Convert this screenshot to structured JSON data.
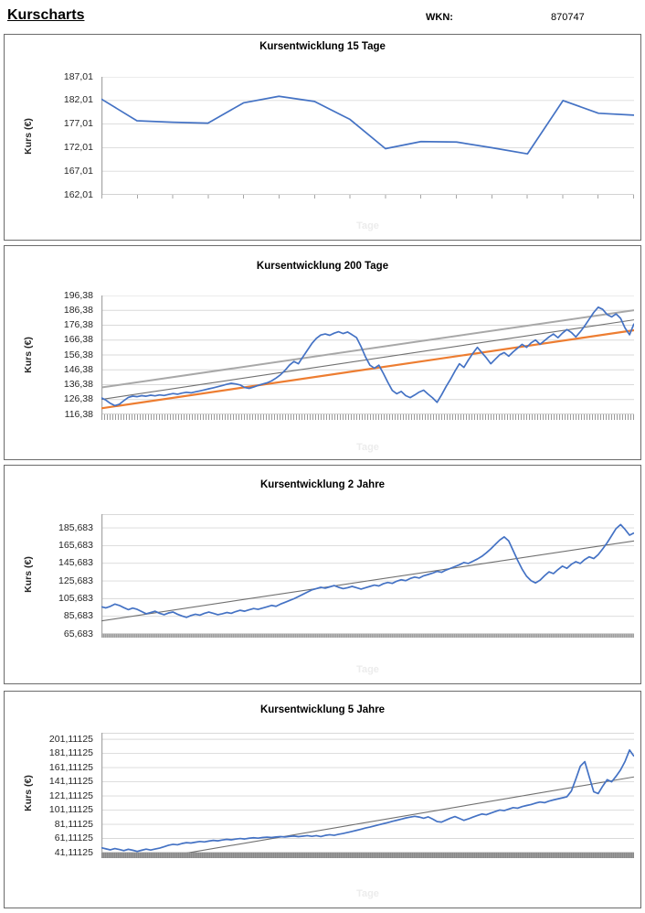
{
  "header": {
    "title": "Kurscharts",
    "wkn_label": "WKN:",
    "wkn_value": "870747"
  },
  "palette": {
    "series_blue": "#4472C4",
    "trend_orange": "#ED7D31",
    "trend_gray_light": "#A8A8A8",
    "trend_gray_dark": "#707070",
    "gridline": "#D9D9D9",
    "axis_line": "#A6A6A6",
    "x_title_watermark": "#ECECEC"
  },
  "chart_data": [
    {
      "type": "line",
      "title": "Kursentwicklung 15 Tage",
      "ylabel": "Kurs (€)",
      "xlabel": "Tage",
      "ylim": [
        162.01,
        187.01
      ],
      "grid": true,
      "legend": "none",
      "top_edge": false,
      "y_ticks": [
        {
          "v": 187.01,
          "label": "187,01"
        },
        {
          "v": 182.01,
          "label": "182,01"
        },
        {
          "v": 177.01,
          "label": "177,01"
        },
        {
          "v": 172.01,
          "label": "172,01"
        },
        {
          "v": 167.01,
          "label": "167,01"
        },
        {
          "v": 162.01,
          "label": "162,01"
        }
      ],
      "series": [
        {
          "name": "Kurs",
          "values": [
            182.3,
            177.7,
            177.4,
            177.2,
            181.5,
            182.9,
            181.8,
            178.0,
            171.8,
            173.3,
            173.2,
            172.0,
            170.7,
            182.0,
            179.3,
            178.9
          ]
        }
      ],
      "trendlines": []
    },
    {
      "type": "line",
      "title": "Kursentwicklung 200 Tage",
      "ylabel": "Kurs (€)",
      "xlabel": "Tage",
      "ylim": [
        116.38,
        196.38
      ],
      "grid": true,
      "legend": "none",
      "top_edge": false,
      "y_ticks": [
        {
          "v": 196.38,
          "label": "196,38"
        },
        {
          "v": 186.38,
          "label": "186,38"
        },
        {
          "v": 176.38,
          "label": "176,38"
        },
        {
          "v": 166.38,
          "label": "166,38"
        },
        {
          "v": 156.38,
          "label": "156,38"
        },
        {
          "v": 146.38,
          "label": "146,38"
        },
        {
          "v": 136.38,
          "label": "136,38"
        },
        {
          "v": 126.38,
          "label": "126,38"
        },
        {
          "v": 116.38,
          "label": "116,38"
        }
      ],
      "series": [
        {
          "name": "Kurs",
          "values": [
            127.5,
            126.0,
            123.8,
            122.3,
            123.2,
            125.6,
            127.8,
            128.7,
            128.3,
            129.0,
            128.6,
            129.3,
            128.9,
            129.5,
            129.1,
            129.8,
            130.4,
            130.0,
            130.7,
            131.3,
            130.9,
            131.6,
            132.2,
            132.9,
            133.6,
            134.3,
            135.0,
            135.8,
            136.6,
            137.3,
            136.9,
            136.2,
            134.5,
            133.9,
            134.8,
            135.9,
            136.8,
            137.6,
            138.9,
            140.8,
            143.0,
            146.0,
            149.5,
            152.0,
            150.5,
            155.0,
            159.5,
            164.0,
            167.5,
            169.8,
            170.5,
            169.6,
            171.0,
            172.0,
            170.8,
            171.8,
            170.0,
            168.0,
            162.0,
            155.0,
            149.5,
            147.5,
            149.5,
            144.0,
            138.0,
            132.5,
            130.3,
            131.8,
            129.0,
            127.7,
            129.4,
            131.4,
            132.7,
            130.0,
            127.5,
            124.5,
            129.5,
            135.0,
            140.0,
            145.5,
            150.5,
            148.0,
            153.0,
            157.5,
            161.5,
            158.0,
            154.5,
            150.5,
            153.5,
            156.5,
            158.0,
            155.5,
            158.5,
            161.0,
            163.5,
            161.5,
            164.5,
            166.5,
            163.5,
            166.0,
            168.5,
            170.5,
            168.0,
            171.0,
            173.5,
            171.5,
            168.5,
            172.0,
            176.0,
            180.5,
            185.0,
            188.5,
            187.0,
            183.5,
            182.0,
            184.0,
            181.0,
            174.5,
            170.0,
            177.5
          ]
        }
      ],
      "trendlines": [
        {
          "name": "upper-channel",
          "color": "trend_gray_light",
          "from": 134.5,
          "to": 186.5,
          "width": 2.0
        },
        {
          "name": "mid-trend",
          "color": "trend_gray_dark",
          "from": 126.5,
          "to": 180.0,
          "width": 1.1
        },
        {
          "name": "lower-channel",
          "color": "trend_orange",
          "from": 120.5,
          "to": 173.0,
          "width": 2.2
        }
      ]
    },
    {
      "type": "line",
      "title": "Kursentwicklung 2 Jahre",
      "ylabel": "Kurs (€)",
      "xlabel": "Tage",
      "ylim": [
        65.683,
        201.3
      ],
      "grid": true,
      "legend": "none",
      "top_edge": true,
      "y_ticks": [
        {
          "v": 185.683,
          "label": "185,683"
        },
        {
          "v": 165.683,
          "label": "165,683"
        },
        {
          "v": 145.683,
          "label": "145,683"
        },
        {
          "v": 125.683,
          "label": "125,683"
        },
        {
          "v": 105.683,
          "label": "105,683"
        },
        {
          "v": 85.683,
          "label": "85,683"
        },
        {
          "v": 65.683,
          "label": "65,683"
        }
      ],
      "series": [
        {
          "name": "Kurs",
          "values": [
            96.5,
            95.2,
            97.0,
            99.5,
            98.0,
            95.5,
            93.2,
            95.0,
            93.5,
            91.0,
            88.5,
            90.0,
            91.5,
            89.0,
            87.5,
            89.5,
            90.5,
            88.0,
            86.0,
            84.5,
            86.5,
            88.0,
            87.0,
            89.0,
            90.5,
            89.0,
            87.5,
            88.5,
            90.0,
            89.0,
            91.0,
            92.5,
            91.5,
            93.0,
            94.5,
            93.5,
            95.0,
            96.5,
            98.0,
            97.0,
            99.5,
            101.5,
            103.5,
            105.5,
            108.0,
            110.5,
            113.0,
            115.5,
            117.0,
            118.5,
            117.5,
            119.0,
            120.5,
            118.5,
            117.0,
            118.0,
            119.5,
            118.0,
            116.5,
            118.0,
            119.5,
            121.0,
            120.0,
            122.5,
            124.0,
            123.0,
            125.5,
            127.0,
            126.0,
            128.5,
            130.0,
            129.0,
            131.5,
            133.0,
            134.5,
            136.5,
            135.5,
            138.0,
            140.0,
            142.0,
            144.0,
            146.5,
            145.5,
            148.0,
            150.5,
            153.5,
            157.5,
            162.0,
            167.0,
            172.0,
            175.5,
            171.0,
            160.0,
            149.0,
            139.0,
            131.0,
            126.0,
            123.5,
            126.5,
            131.5,
            136.0,
            134.0,
            138.5,
            142.5,
            140.0,
            144.5,
            147.5,
            145.5,
            150.0,
            153.0,
            151.0,
            155.5,
            162.0,
            169.0,
            177.0,
            185.0,
            189.5,
            184.0,
            177.5,
            180.0
          ]
        }
      ],
      "trendlines": [
        {
          "name": "mid-trend",
          "color": "trend_gray_dark",
          "from": 80.5,
          "to": 171.0,
          "width": 1.1
        }
      ]
    },
    {
      "type": "line",
      "title": "Kursentwicklung 5 Jahre",
      "ylabel": "Kurs (€)",
      "xlabel": "Tage",
      "ylim": [
        41.11125,
        210.3
      ],
      "grid": true,
      "legend": "none",
      "top_edge": true,
      "y_ticks": [
        {
          "v": 201.11125,
          "label": "201,11125"
        },
        {
          "v": 181.11125,
          "label": "181,11125"
        },
        {
          "v": 161.11125,
          "label": "161,11125"
        },
        {
          "v": 141.11125,
          "label": "141,11125"
        },
        {
          "v": 121.11125,
          "label": "121,11125"
        },
        {
          "v": 101.11125,
          "label": "101,11125"
        },
        {
          "v": 81.11125,
          "label": "81,11125"
        },
        {
          "v": 61.11125,
          "label": "61,11125"
        },
        {
          "v": 41.11125,
          "label": "41,11125"
        }
      ],
      "series": [
        {
          "name": "Kurs",
          "values": [
            48.0,
            46.5,
            45.0,
            46.8,
            45.5,
            44.0,
            45.8,
            44.5,
            42.8,
            44.5,
            46.0,
            44.8,
            46.2,
            47.5,
            49.5,
            51.5,
            52.8,
            52.2,
            54.0,
            55.2,
            54.6,
            55.8,
            56.8,
            56.2,
            57.4,
            58.4,
            57.8,
            59.0,
            59.8,
            59.2,
            60.2,
            61.0,
            60.4,
            61.4,
            62.0,
            61.6,
            62.4,
            63.0,
            62.4,
            63.2,
            63.8,
            63.2,
            64.0,
            64.6,
            63.8,
            64.4,
            65.0,
            64.2,
            65.0,
            63.8,
            65.4,
            66.4,
            65.6,
            67.0,
            68.2,
            69.6,
            71.0,
            72.6,
            74.2,
            75.8,
            77.2,
            78.8,
            80.4,
            82.0,
            83.6,
            85.2,
            86.8,
            88.4,
            90.0,
            91.2,
            92.4,
            91.4,
            89.6,
            91.6,
            88.6,
            85.0,
            84.2,
            87.0,
            89.8,
            92.0,
            89.4,
            86.6,
            88.8,
            91.2,
            93.4,
            95.6,
            94.6,
            97.0,
            99.2,
            101.2,
            100.4,
            102.6,
            104.6,
            103.8,
            106.0,
            107.6,
            109.0,
            111.0,
            112.6,
            111.6,
            113.8,
            115.6,
            117.0,
            118.4,
            120.0,
            128.0,
            145.0,
            163.0,
            169.5,
            148.0,
            127.0,
            124.5,
            135.0,
            144.0,
            141.0,
            149.0,
            158.0,
            170.0,
            186.0,
            177.0
          ]
        }
      ],
      "trendlines": [
        {
          "name": "mid-trend",
          "color": "trend_gray_dark",
          "from": 20.0,
          "to": 148.0,
          "width": 1.1
        }
      ]
    }
  ]
}
